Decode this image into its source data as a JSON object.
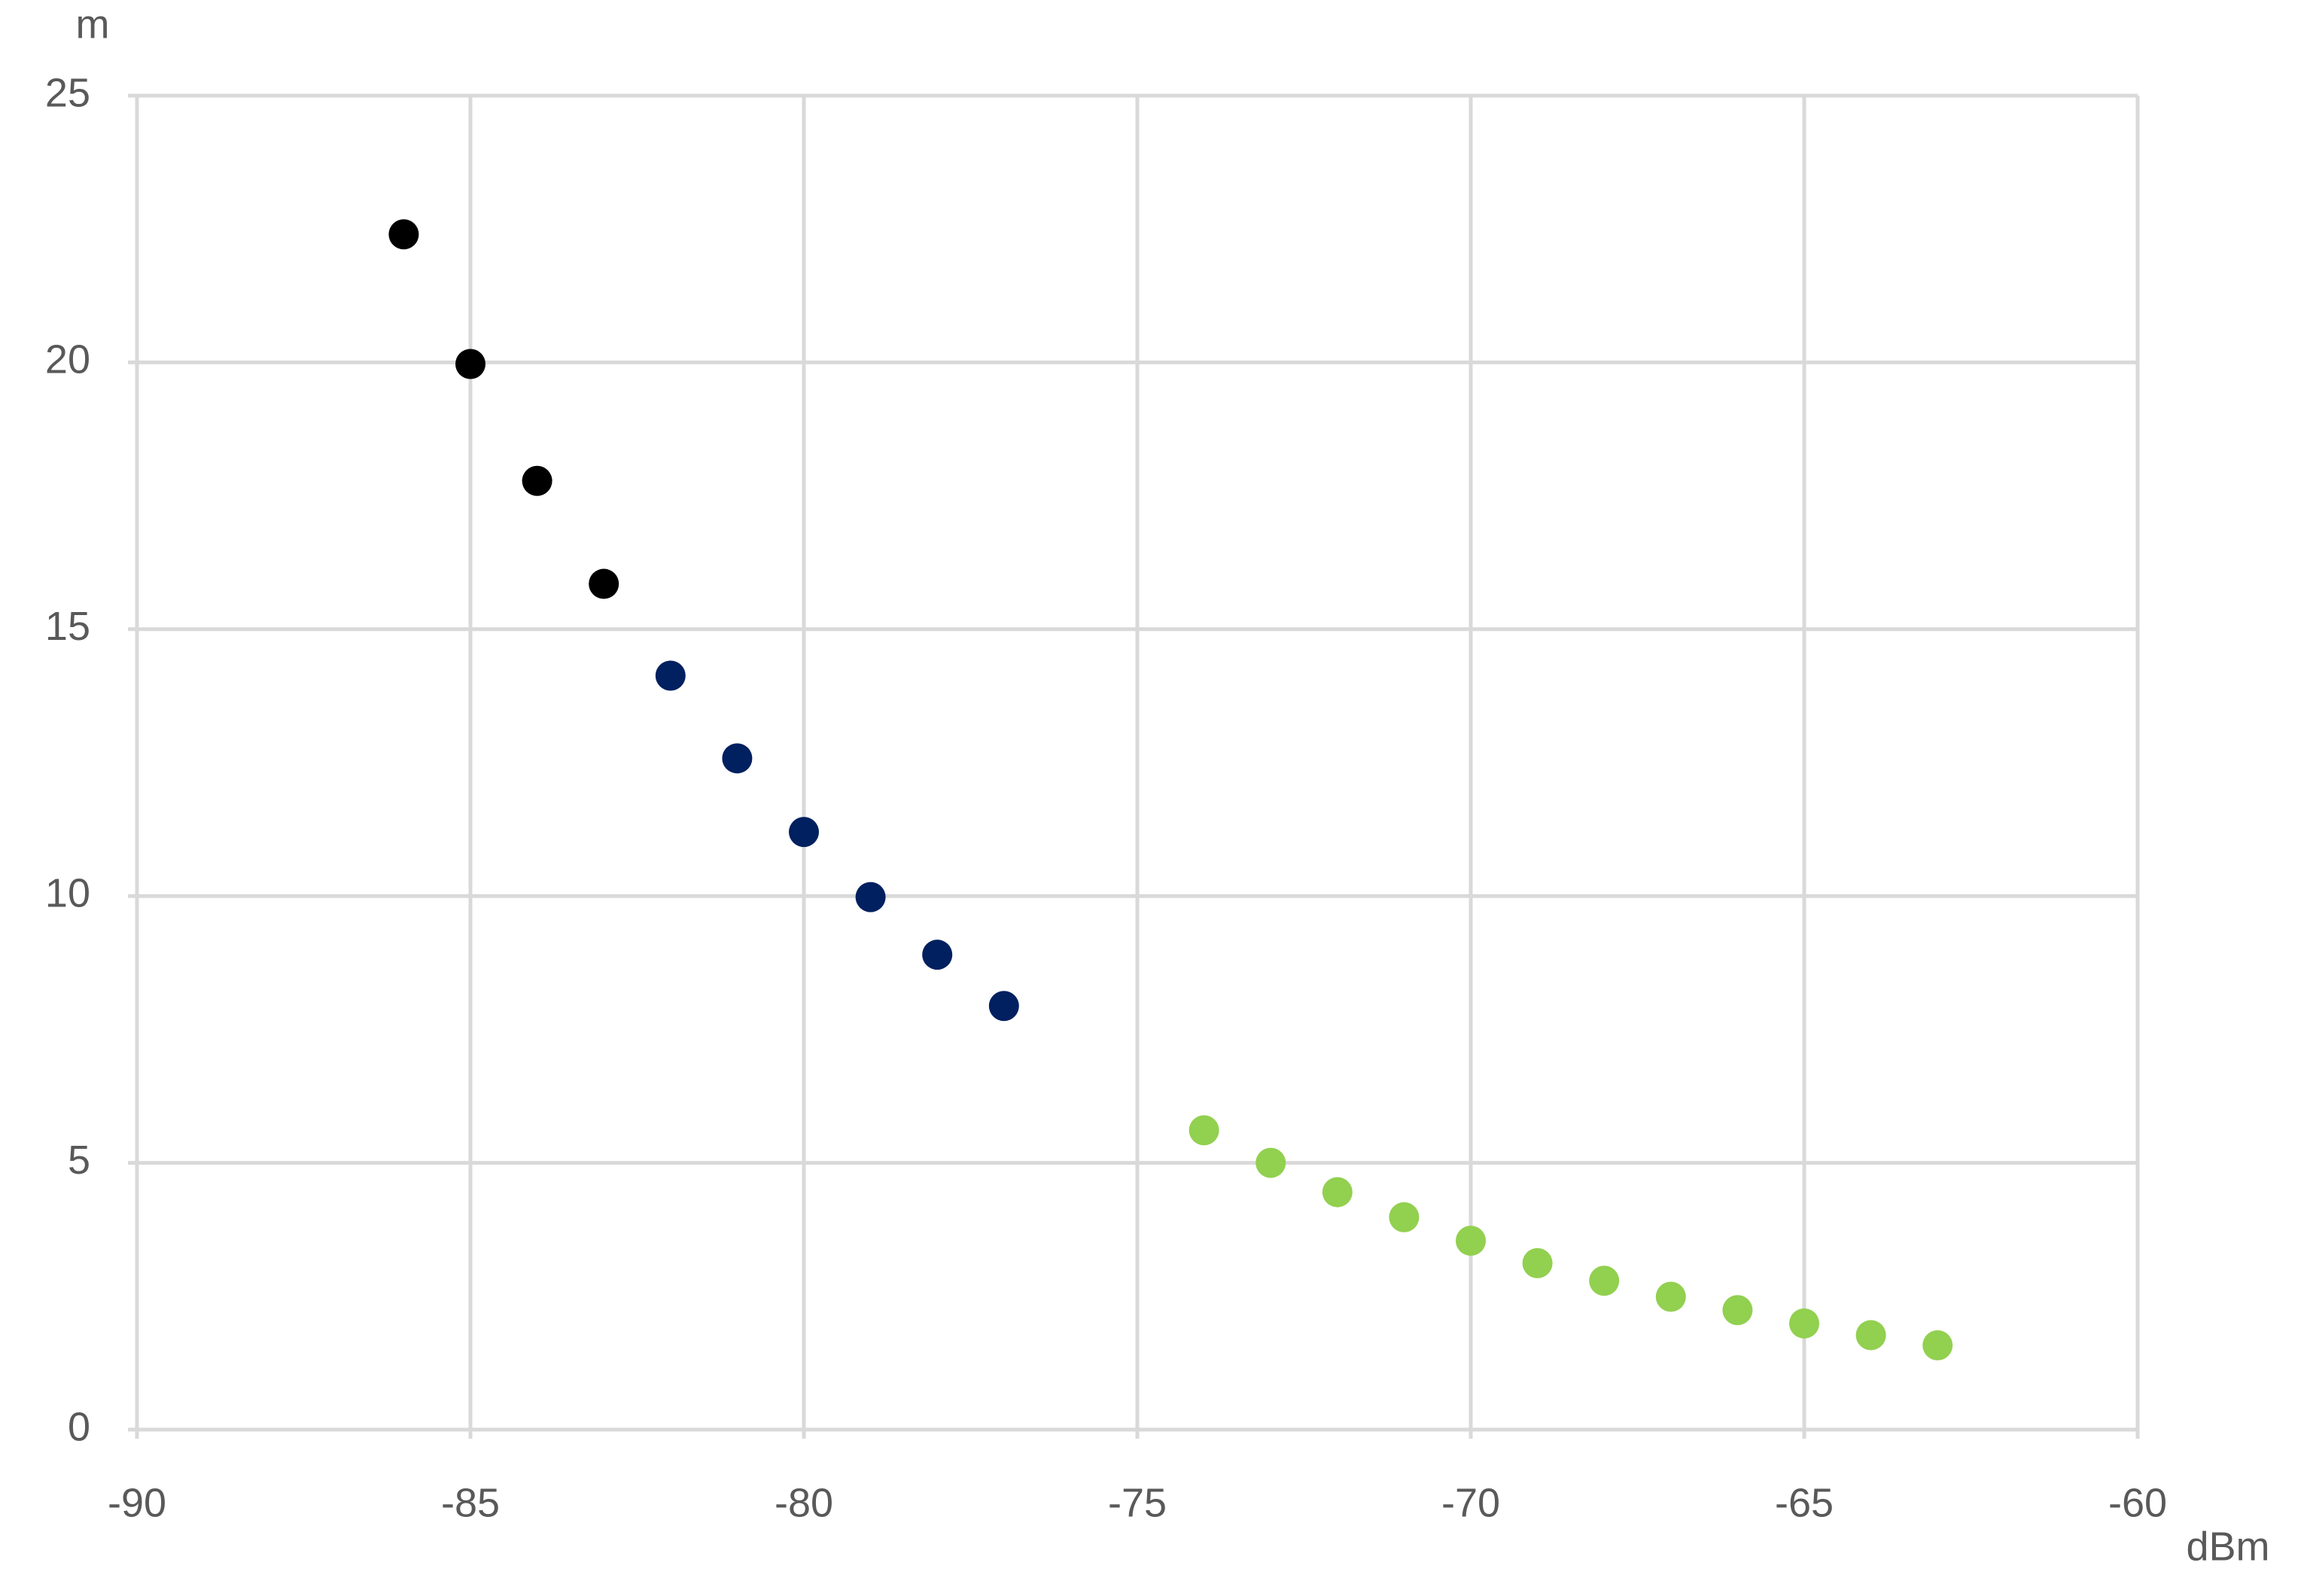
{
  "chart_data": {
    "type": "scatter",
    "x_label": "dBm",
    "y_label": "m",
    "xlim": [
      -90,
      -60
    ],
    "xticks": [
      -90,
      -85,
      -80,
      -75,
      -70,
      -65,
      -60
    ],
    "ylim": [
      0,
      25
    ],
    "yticks": [
      0,
      5,
      10,
      15,
      20,
      25
    ],
    "grid": true,
    "series": [
      {
        "color": "#000000",
        "x": [
          -86,
          -85,
          -84,
          -83
        ],
        "values": [
          22.4,
          19.97,
          17.78,
          15.85
        ]
      },
      {
        "color": "#002060",
        "x": [
          -82,
          -81,
          -80,
          -79,
          -78,
          -77
        ],
        "values": [
          14.13,
          12.58,
          11.2,
          9.98,
          8.9,
          7.94
        ]
      },
      {
        "color": "#92d050",
        "x": [
          -74,
          -73,
          -72,
          -71,
          -70,
          -69,
          -68,
          -67,
          -66,
          -65,
          -64,
          -63
        ],
        "values": [
          5.61,
          5.0,
          4.45,
          3.98,
          3.54,
          3.12,
          2.79,
          2.49,
          2.24,
          1.99,
          1.77,
          1.58
        ]
      }
    ]
  }
}
